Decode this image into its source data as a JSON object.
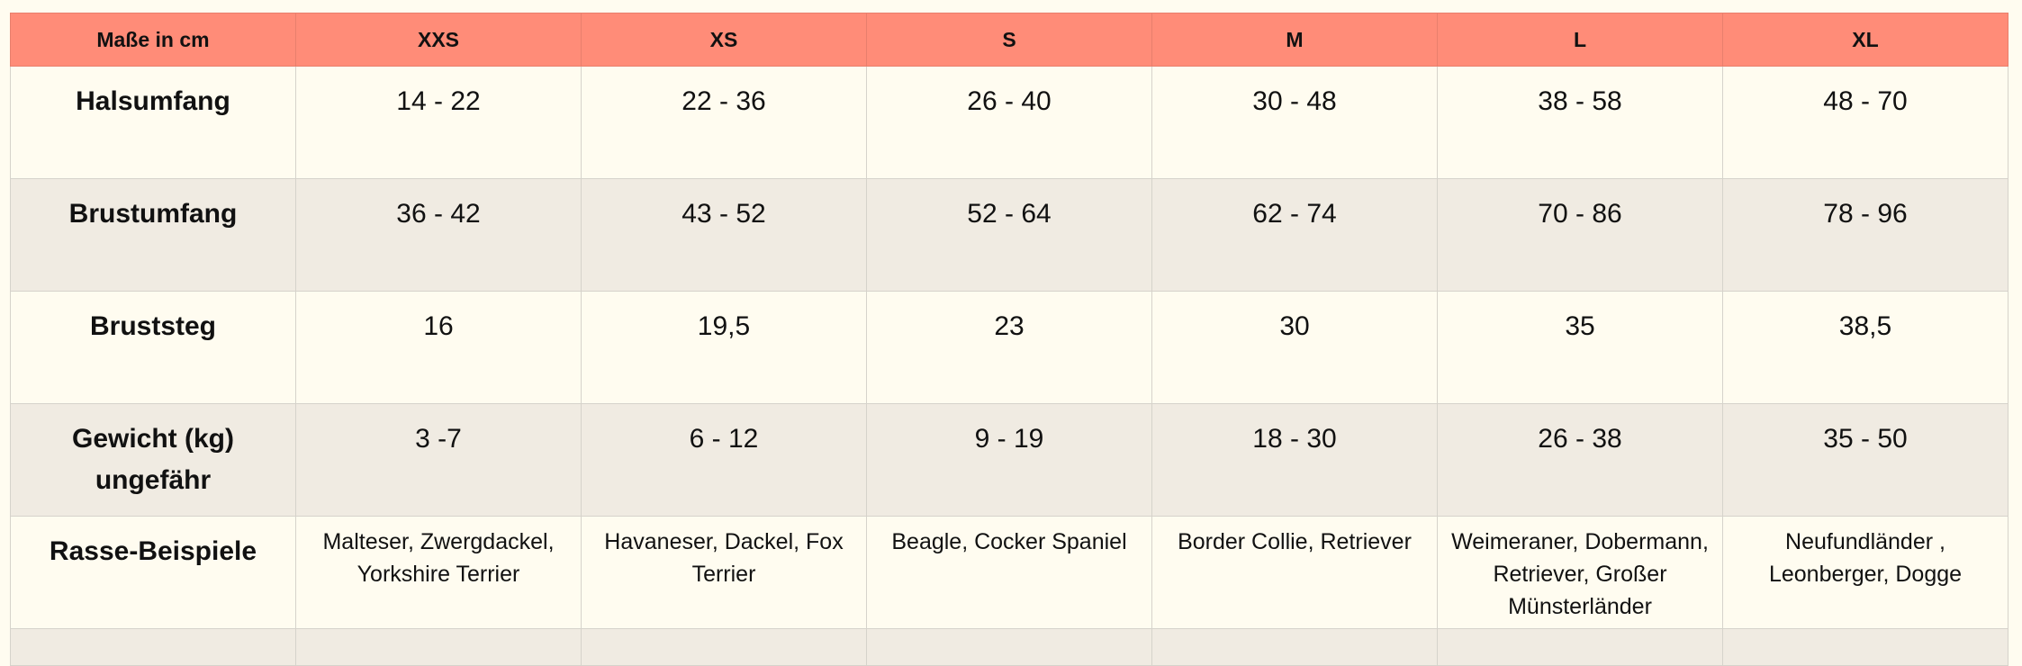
{
  "header": [
    "Maße in cm",
    "XXS",
    "XS",
    "S",
    "M",
    "L",
    "XL"
  ],
  "rows": [
    {
      "label": "Halsumfang",
      "values": [
        "14 - 22",
        "22 - 36",
        "26 - 40",
        "30 - 48",
        "38 - 58",
        "48 - 70"
      ]
    },
    {
      "label": "Brustumfang",
      "values": [
        "36 - 42",
        "43 - 52",
        "52 - 64",
        "62 - 74",
        "70 - 86",
        "78 - 96"
      ]
    },
    {
      "label": "Bruststeg",
      "values": [
        "16",
        "19,5",
        "23",
        "30",
        "35",
        "38,5"
      ]
    },
    {
      "label": "Gewicht (kg) ungefähr",
      "values": [
        "3 -7",
        "6 - 12",
        "9 - 19",
        "18 - 30",
        "26 - 38",
        "35 - 50"
      ]
    },
    {
      "label": "Rasse-Beispiele",
      "values": [
        "Malteser, Zwergdackel, Yorkshire Terrier",
        "Havaneser, Dackel, Fox Terrier",
        "Beagle, Cocker Spaniel",
        "Border Collie, Retriever",
        "Weimeraner, Dobermann, Retriever, Großer Münsterländer",
        "Neufundländer , Leonberger, Dogge"
      ]
    }
  ],
  "colors": {
    "header": "#ff8c78",
    "row": "#fffcf0",
    "row_alt": "#f0ebe2"
  }
}
